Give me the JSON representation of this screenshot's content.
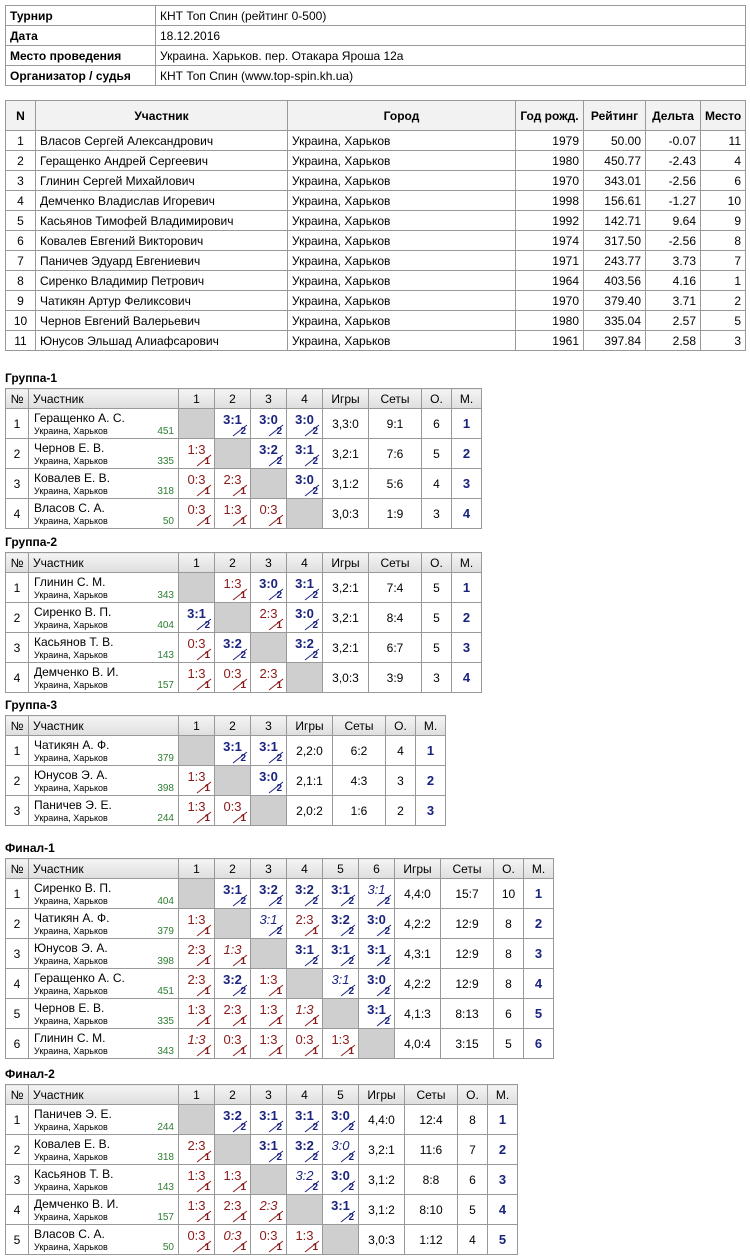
{
  "info": [
    [
      "Турнир",
      "КНТ Топ Спин (рейтинг 0-500)"
    ],
    [
      "Дата",
      "18.12.2016"
    ],
    [
      "Место проведения",
      "Украина. Харьков. пер. Отакара Яроша 12а"
    ],
    [
      "Организатор / судья",
      "КНТ Топ Спин (www.top-spin.kh.ua)"
    ]
  ],
  "participants": {
    "header": [
      "N",
      "Участник",
      "Город",
      "Год рожд.",
      "Рейтинг",
      "Дельта",
      "Место"
    ],
    "rows": [
      [
        "1",
        "Власов Сергей Александрович",
        "Украина, Харьков",
        "1979",
        "50.00",
        "-0.07",
        "11"
      ],
      [
        "2",
        "Геращенко Андрей Сергеевич",
        "Украина, Харьков",
        "1980",
        "450.77",
        "-2.43",
        "4"
      ],
      [
        "3",
        "Глинин Сергей Михайлович",
        "Украина, Харьков",
        "1970",
        "343.01",
        "-2.56",
        "6"
      ],
      [
        "4",
        "Демченко Владислав Игоревич",
        "Украина, Харьков",
        "1998",
        "156.61",
        "-1.27",
        "10"
      ],
      [
        "5",
        "Касьянов Тимофей Владимирович",
        "Украина, Харьков",
        "1992",
        "142.71",
        "9.64",
        "9"
      ],
      [
        "6",
        "Ковалев Евгений Викторович",
        "Украина, Харьков",
        "1974",
        "317.50",
        "-2.56",
        "8"
      ],
      [
        "7",
        "Паничев Эдуард Евгениевич",
        "Украина, Харьков",
        "1971",
        "243.77",
        "3.73",
        "7"
      ],
      [
        "8",
        "Сиренко Владимир Петрович",
        "Украина, Харьков",
        "1964",
        "403.56",
        "4.16",
        "1"
      ],
      [
        "9",
        "Чатикян Артур Феликсович",
        "Украина, Харьков",
        "1970",
        "379.40",
        "3.71",
        "2"
      ],
      [
        "10",
        "Чернов Евгений Валерьевич",
        "Украина, Харьков",
        "1980",
        "335.04",
        "2.57",
        "5"
      ],
      [
        "11",
        "Юнусов Эльшад Алиафсарович",
        "Украина, Харьков",
        "1961",
        "397.84",
        "2.58",
        "3"
      ]
    ]
  },
  "groups": [
    {
      "title": "Группа-1",
      "header": [
        "№",
        "Участник",
        "1",
        "2",
        "3",
        "4",
        "Игры",
        "Сеты",
        "О.",
        "М."
      ],
      "rows": [
        {
          "num": 1,
          "name": "Геращенко А. С.",
          "city": "Украина, Харьков",
          "rating": 451,
          "cells": [
            null,
            {
              "score": "3:1",
              "points": 2
            },
            {
              "score": "3:0",
              "points": 2
            },
            {
              "score": "3:0",
              "points": 2
            }
          ],
          "games": "3,3:0",
          "sets": "9:1",
          "points": 6,
          "place": 1
        },
        {
          "num": 2,
          "name": "Чернов Е. В.",
          "city": "Украина, Харьков",
          "rating": 335,
          "cells": [
            {
              "score": "1:3",
              "points": 1
            },
            null,
            {
              "score": "3:2",
              "points": 2
            },
            {
              "score": "3:1",
              "points": 2
            }
          ],
          "games": "3,2:1",
          "sets": "7:6",
          "points": 5,
          "place": 2
        },
        {
          "num": 3,
          "name": "Ковалев Е. В.",
          "city": "Украина, Харьков",
          "rating": 318,
          "cells": [
            {
              "score": "0:3",
              "points": 1
            },
            {
              "score": "2:3",
              "points": 1
            },
            null,
            {
              "score": "3:0",
              "points": 2
            }
          ],
          "games": "3,1:2",
          "sets": "5:6",
          "points": 4,
          "place": 3
        },
        {
          "num": 4,
          "name": "Власов С. А.",
          "city": "Украина, Харьков",
          "rating": 50,
          "cells": [
            {
              "score": "0:3",
              "points": 1
            },
            {
              "score": "1:3",
              "points": 1
            },
            {
              "score": "0:3",
              "points": 1
            },
            null
          ],
          "games": "3,0:3",
          "sets": "1:9",
          "points": 3,
          "place": 4
        }
      ]
    },
    {
      "title": "Группа-2",
      "header": [
        "№",
        "Участник",
        "1",
        "2",
        "3",
        "4",
        "Игры",
        "Сеты",
        "О.",
        "М."
      ],
      "rows": [
        {
          "num": 1,
          "name": "Глинин С. М.",
          "city": "Украина, Харьков",
          "rating": 343,
          "cells": [
            null,
            {
              "score": "1:3",
              "points": 1
            },
            {
              "score": "3:0",
              "points": 2
            },
            {
              "score": "3:1",
              "points": 2
            }
          ],
          "games": "3,2:1",
          "sets": "7:4",
          "points": 5,
          "place": 1
        },
        {
          "num": 2,
          "name": "Сиренко В. П.",
          "city": "Украина, Харьков",
          "rating": 404,
          "cells": [
            {
              "score": "3:1",
              "points": 2
            },
            null,
            {
              "score": "2:3",
              "points": 1
            },
            {
              "score": "3:0",
              "points": 2
            }
          ],
          "games": "3,2:1",
          "sets": "8:4",
          "points": 5,
          "place": 2
        },
        {
          "num": 3,
          "name": "Касьянов Т. В.",
          "city": "Украина, Харьков",
          "rating": 143,
          "cells": [
            {
              "score": "0:3",
              "points": 1
            },
            {
              "score": "3:2",
              "points": 2
            },
            null,
            {
              "score": "3:2",
              "points": 2
            }
          ],
          "games": "3,2:1",
          "sets": "6:7",
          "points": 5,
          "place": 3
        },
        {
          "num": 4,
          "name": "Демченко В. И.",
          "city": "Украина, Харьков",
          "rating": 157,
          "cells": [
            {
              "score": "1:3",
              "points": 1
            },
            {
              "score": "0:3",
              "points": 1
            },
            {
              "score": "2:3",
              "points": 1
            },
            null
          ],
          "games": "3,0:3",
          "sets": "3:9",
          "points": 3,
          "place": 4
        }
      ]
    },
    {
      "title": "Группа-3",
      "header": [
        "№",
        "Участник",
        "1",
        "2",
        "3",
        "Игры",
        "Сеты",
        "О.",
        "М."
      ],
      "rows": [
        {
          "num": 1,
          "name": "Чатикян А. Ф.",
          "city": "Украина, Харьков",
          "rating": 379,
          "cells": [
            null,
            {
              "score": "3:1",
              "points": 2
            },
            {
              "score": "3:1",
              "points": 2
            }
          ],
          "games": "2,2:0",
          "sets": "6:2",
          "points": 4,
          "place": 1
        },
        {
          "num": 2,
          "name": "Юнусов Э. А.",
          "city": "Украина, Харьков",
          "rating": 398,
          "cells": [
            {
              "score": "1:3",
              "points": 1
            },
            null,
            {
              "score": "3:0",
              "points": 2
            }
          ],
          "games": "2,1:1",
          "sets": "4:3",
          "points": 3,
          "place": 2
        },
        {
          "num": 3,
          "name": "Паничев Э. Е.",
          "city": "Украина, Харьков",
          "rating": 244,
          "cells": [
            {
              "score": "1:3",
              "points": 1
            },
            {
              "score": "0:3",
              "points": 1
            },
            null
          ],
          "games": "2,0:2",
          "sets": "1:6",
          "points": 2,
          "place": 3
        }
      ]
    },
    {
      "title": "Финал-1",
      "header": [
        "№",
        "Участник",
        "1",
        "2",
        "3",
        "4",
        "5",
        "6",
        "Игры",
        "Сеты",
        "О.",
        "М."
      ],
      "rows": [
        {
          "num": 1,
          "name": "Сиренко В. П.",
          "city": "Украина, Харьков",
          "rating": 404,
          "cells": [
            null,
            {
              "score": "3:1",
              "points": 2
            },
            {
              "score": "3:2",
              "points": 2
            },
            {
              "score": "3:2",
              "points": 2
            },
            {
              "score": "3:1",
              "points": 2
            },
            {
              "score": "3:1",
              "points": 2,
              "italic": true
            }
          ],
          "games": "4,4:0",
          "sets": "15:7",
          "points": 10,
          "place": 1
        },
        {
          "num": 2,
          "name": "Чатикян А. Ф.",
          "city": "Украина, Харьков",
          "rating": 379,
          "cells": [
            {
              "score": "1:3",
              "points": 1
            },
            null,
            {
              "score": "3:1",
              "points": 2,
              "italic": true
            },
            {
              "score": "2:3",
              "points": 1
            },
            {
              "score": "3:2",
              "points": 2
            },
            {
              "score": "3:0",
              "points": 2
            }
          ],
          "games": "4,2:2",
          "sets": "12:9",
          "points": 8,
          "place": 2
        },
        {
          "num": 3,
          "name": "Юнусов Э. А.",
          "city": "Украина, Харьков",
          "rating": 398,
          "cells": [
            {
              "score": "2:3",
              "points": 1
            },
            {
              "score": "1:3",
              "points": 1,
              "italic": true
            },
            null,
            {
              "score": "3:1",
              "points": 2
            },
            {
              "score": "3:1",
              "points": 2
            },
            {
              "score": "3:1",
              "points": 2
            }
          ],
          "games": "4,3:1",
          "sets": "12:9",
          "points": 8,
          "place": 3
        },
        {
          "num": 4,
          "name": "Геращенко А. С.",
          "city": "Украина, Харьков",
          "rating": 451,
          "cells": [
            {
              "score": "2:3",
              "points": 1
            },
            {
              "score": "3:2",
              "points": 2
            },
            {
              "score": "1:3",
              "points": 1
            },
            null,
            {
              "score": "3:1",
              "points": 2,
              "italic": true
            },
            {
              "score": "3:0",
              "points": 2
            }
          ],
          "games": "4,2:2",
          "sets": "12:9",
          "points": 8,
          "place": 4
        },
        {
          "num": 5,
          "name": "Чернов Е. В.",
          "city": "Украина, Харьков",
          "rating": 335,
          "cells": [
            {
              "score": "1:3",
              "points": 1
            },
            {
              "score": "2:3",
              "points": 1
            },
            {
              "score": "1:3",
              "points": 1
            },
            {
              "score": "1:3",
              "points": 1,
              "italic": true
            },
            null,
            {
              "score": "3:1",
              "points": 2
            }
          ],
          "games": "4,1:3",
          "sets": "8:13",
          "points": 6,
          "place": 5
        },
        {
          "num": 6,
          "name": "Глинин С. М.",
          "city": "Украина, Харьков",
          "rating": 343,
          "cells": [
            {
              "score": "1:3",
              "points": 1,
              "italic": true
            },
            {
              "score": "0:3",
              "points": 1
            },
            {
              "score": "1:3",
              "points": 1
            },
            {
              "score": "0:3",
              "points": 1
            },
            {
              "score": "1:3",
              "points": 1
            },
            null
          ],
          "games": "4,0:4",
          "sets": "3:15",
          "points": 5,
          "place": 6
        }
      ]
    },
    {
      "title": "Финал-2",
      "header": [
        "№",
        "Участник",
        "1",
        "2",
        "3",
        "4",
        "5",
        "Игры",
        "Сеты",
        "О.",
        "М."
      ],
      "rows": [
        {
          "num": 1,
          "name": "Паничев Э. Е.",
          "city": "Украина, Харьков",
          "rating": 244,
          "cells": [
            null,
            {
              "score": "3:2",
              "points": 2
            },
            {
              "score": "3:1",
              "points": 2
            },
            {
              "score": "3:1",
              "points": 2
            },
            {
              "score": "3:0",
              "points": 2
            }
          ],
          "games": "4,4:0",
          "sets": "12:4",
          "points": 8,
          "place": 1
        },
        {
          "num": 2,
          "name": "Ковалев Е. В.",
          "city": "Украина, Харьков",
          "rating": 318,
          "cells": [
            {
              "score": "2:3",
              "points": 1
            },
            null,
            {
              "score": "3:1",
              "points": 2
            },
            {
              "score": "3:2",
              "points": 2
            },
            {
              "score": "3:0",
              "points": 2,
              "italic": true
            }
          ],
          "games": "3,2:1",
          "sets": "11:6",
          "points": 7,
          "place": 2
        },
        {
          "num": 3,
          "name": "Касьянов Т. В.",
          "city": "Украина, Харьков",
          "rating": 143,
          "cells": [
            {
              "score": "1:3",
              "points": 1
            },
            {
              "score": "1:3",
              "points": 1
            },
            null,
            {
              "score": "3:2",
              "points": 2,
              "italic": true
            },
            {
              "score": "3:0",
              "points": 2
            }
          ],
          "games": "3,1:2",
          "sets": "8:8",
          "points": 6,
          "place": 3
        },
        {
          "num": 4,
          "name": "Демченко В. И.",
          "city": "Украина, Харьков",
          "rating": 157,
          "cells": [
            {
              "score": "1:3",
              "points": 1
            },
            {
              "score": "2:3",
              "points": 1
            },
            {
              "score": "2:3",
              "points": 1,
              "italic": true
            },
            null,
            {
              "score": "3:1",
              "points": 2
            }
          ],
          "games": "3,1:2",
          "sets": "8:10",
          "points": 5,
          "place": 4
        },
        {
          "num": 5,
          "name": "Власов С. А.",
          "city": "Украина, Харьков",
          "rating": 50,
          "cells": [
            {
              "score": "0:3",
              "points": 1
            },
            {
              "score": "0:3",
              "points": 1,
              "italic": true
            },
            {
              "score": "0:3",
              "points": 1
            },
            {
              "score": "1:3",
              "points": 1
            },
            null
          ],
          "games": "3,0:3",
          "sets": "1:12",
          "points": 4,
          "place": 5
        }
      ]
    }
  ]
}
